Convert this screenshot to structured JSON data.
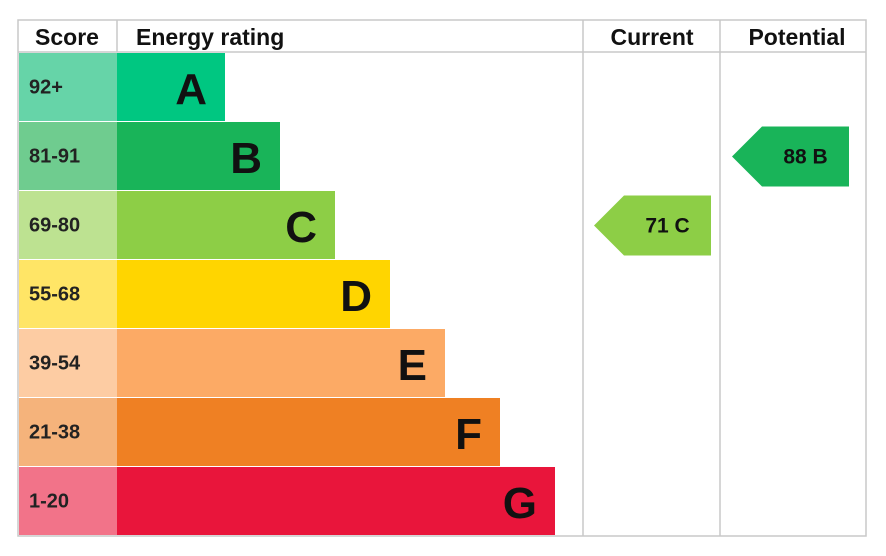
{
  "header": {
    "score": "Score",
    "energy_rating": "Energy rating",
    "current": "Current",
    "potential": "Potential"
  },
  "bands": [
    {
      "score": "92+",
      "rating": "A",
      "color": "#00c781",
      "light": "#66d4a8"
    },
    {
      "score": "81-91",
      "rating": "B",
      "color": "#19b459",
      "light": "#6fcc8f"
    },
    {
      "score": "69-80",
      "rating": "C",
      "color": "#8dce46",
      "light": "#bde291"
    },
    {
      "score": "55-68",
      "rating": "D",
      "color": "#ffd500",
      "light": "#ffe566"
    },
    {
      "score": "39-54",
      "rating": "E",
      "color": "#fcaa65",
      "light": "#fdcca3"
    },
    {
      "score": "21-38",
      "rating": "F",
      "color": "#ef8023",
      "light": "#f5b37b"
    },
    {
      "score": "1-20",
      "rating": "G",
      "color": "#e9153b",
      "light": "#f27389"
    }
  ],
  "current": {
    "score": 71,
    "rating": "C"
  },
  "potential": {
    "score": 88,
    "rating": "B"
  }
}
